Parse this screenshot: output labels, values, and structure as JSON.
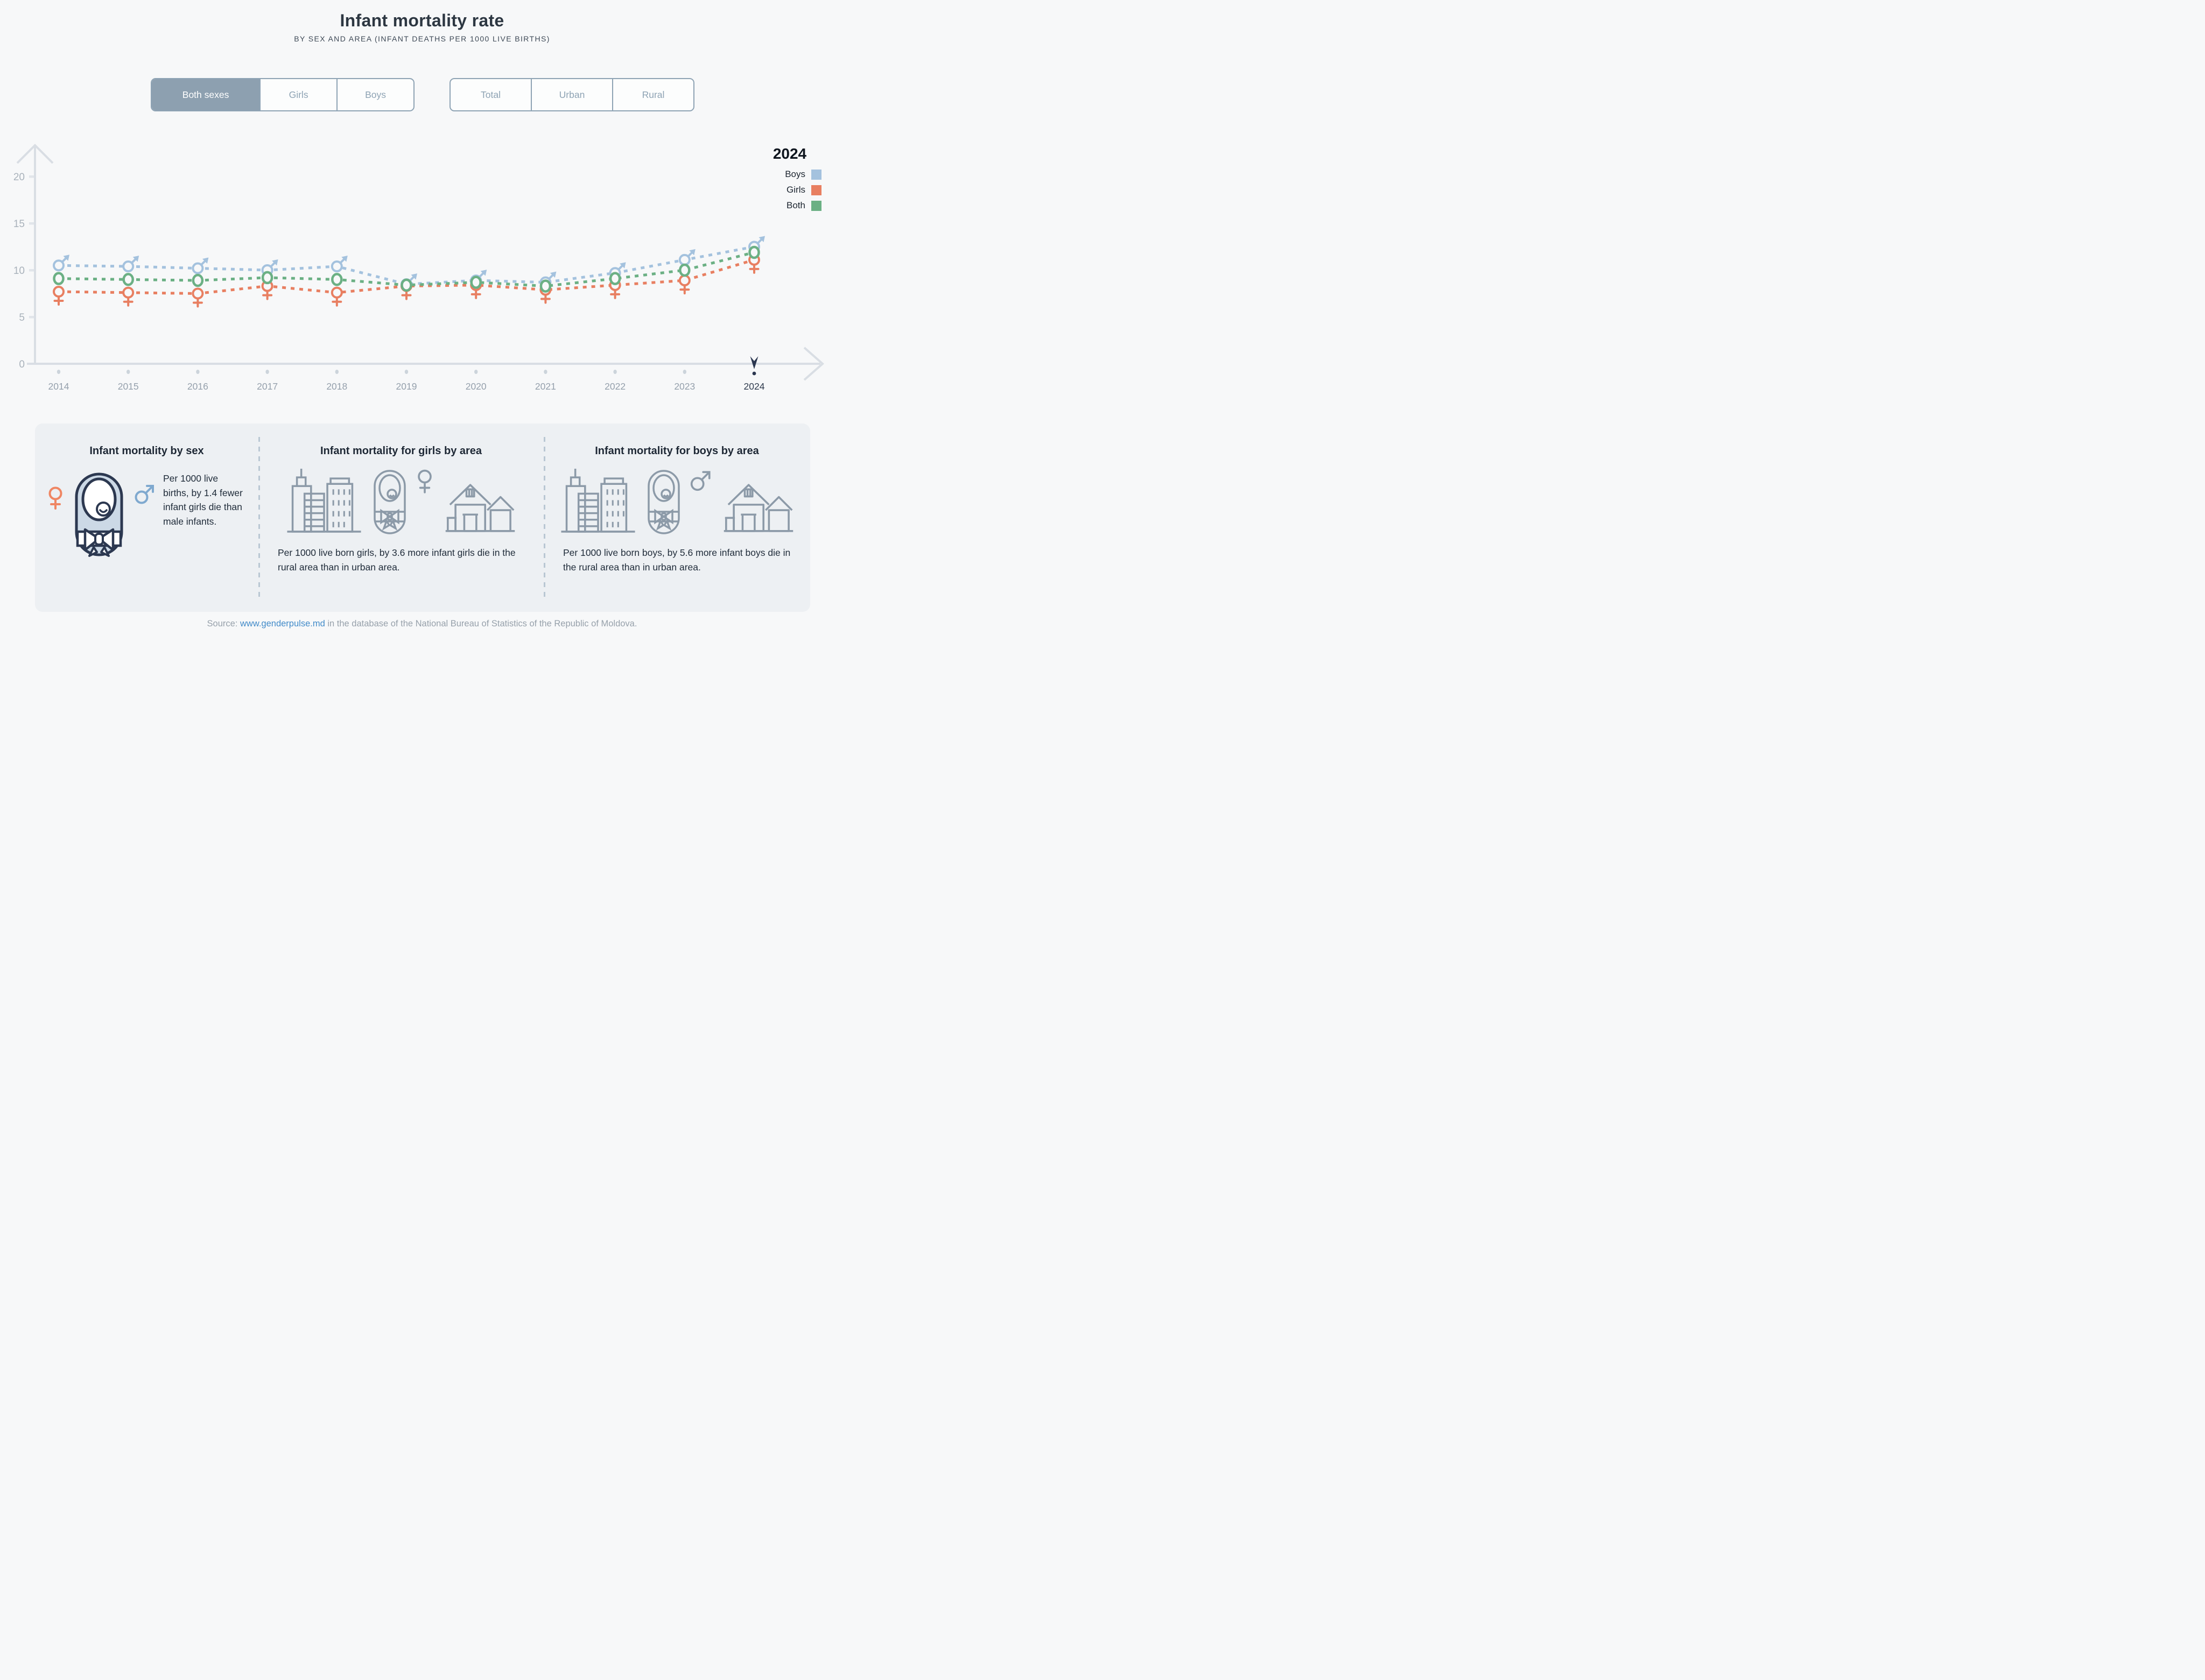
{
  "header": {
    "title": "Infant mortality rate",
    "subtitle": "BY SEX AND AREA (INFANT DEATHS PER 1000 LIVE BIRTHS)"
  },
  "filters": {
    "sex": {
      "options": [
        "Both sexes",
        "Girls",
        "Boys"
      ],
      "active": "Both sexes"
    },
    "area": {
      "options": [
        "Total",
        "Urban",
        "Rural"
      ],
      "active": ""
    }
  },
  "legend": {
    "year": "2024",
    "items": [
      {
        "label": "Boys",
        "color": "#a4c2de"
      },
      {
        "label": "Girls",
        "color": "#e87f61"
      },
      {
        "label": "Both",
        "color": "#6bb084"
      }
    ]
  },
  "chart_data": {
    "type": "line",
    "title": "Infant mortality rate",
    "ylabel": "infant deaths per 1000 live births",
    "x": [
      2014,
      2015,
      2016,
      2017,
      2018,
      2019,
      2020,
      2021,
      2022,
      2023,
      2024
    ],
    "series": [
      {
        "name": "Boys",
        "color": "#a4c2de",
        "marker": "male",
        "values": [
          10.5,
          10.4,
          10.2,
          10.0,
          10.4,
          8.5,
          8.9,
          8.7,
          9.7,
          11.1,
          12.5
        ]
      },
      {
        "name": "Girls",
        "color": "#e87f61",
        "marker": "female",
        "values": [
          7.7,
          7.6,
          7.5,
          8.3,
          7.6,
          8.3,
          8.4,
          7.9,
          8.4,
          8.9,
          11.1
        ]
      },
      {
        "name": "Both",
        "color": "#6bb084",
        "marker": "circle",
        "values": [
          9.1,
          9.0,
          8.9,
          9.2,
          9.0,
          8.4,
          8.7,
          8.3,
          9.1,
          10.0,
          11.9
        ]
      }
    ],
    "yticks": [
      0,
      5,
      10,
      15,
      20
    ],
    "ylim": [
      0,
      22
    ],
    "grid": false,
    "legend_position": "top-right",
    "highlight_x": 2024
  },
  "cards": [
    {
      "title": "Infant mortality by sex",
      "text": "Per 1000 live births, by 1.4 fewer infant girls die than male infants."
    },
    {
      "title": "Infant mortality for girls by area",
      "text": "Per 1000 live born girls, by 3.6 more infant girls die in the rural area than in urban area."
    },
    {
      "title": "Infant mortality for boys by area",
      "text": "Per 1000 live born boys, by 5.6 more infant boys die in the rural area than in urban area."
    }
  ],
  "source": {
    "prefix": "Source: ",
    "link": "www.genderpulse.md",
    "suffix": " in the database of the National Bureau of Statistics of the Republic of Moldova."
  },
  "theme": {
    "control_accent": "#8da0b0",
    "highlight_navy": "#2b3750",
    "link_blue": "#428bc9",
    "axis_gray": "#d9dee4",
    "background": "#f7f8f9"
  }
}
